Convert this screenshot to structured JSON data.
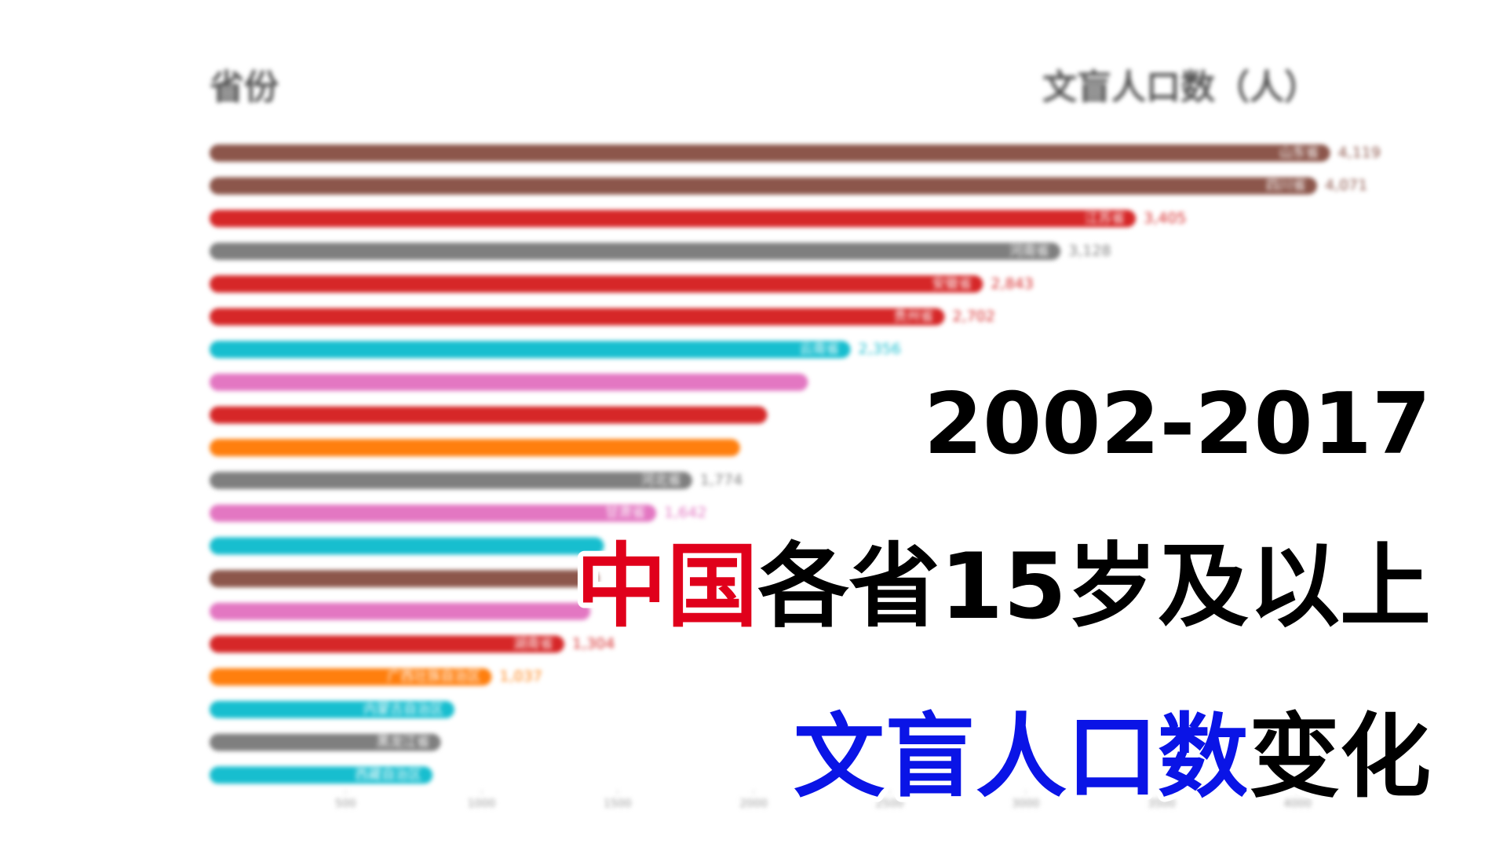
{
  "chart_data": {
    "type": "barh",
    "header_left": "省份",
    "header_right": "文盲人口数（人）",
    "categories": [
      "山东省",
      "四川省",
      "江苏省",
      "河南省",
      "安徽省",
      "贵州省",
      "云南省",
      null,
      null,
      null,
      "河北省",
      "甘肃省",
      null,
      null,
      null,
      "湖南省",
      "广西壮族自治区",
      "内蒙古自治区",
      "黑龙江省",
      "西藏自治区"
    ],
    "values": [
      4119,
      4071,
      3405,
      3128,
      2843,
      2702,
      2356,
      2200,
      2050,
      1950,
      1774,
      1642,
      1450,
      1430,
      1400,
      1304,
      1037,
      900,
      850,
      820
    ],
    "value_labels": [
      "4,119",
      "4,071",
      "3,405",
      "3,128",
      "2,843",
      "2,702",
      "2,356",
      null,
      null,
      null,
      "1,774",
      "1,642",
      null,
      null,
      null,
      "1,304",
      "1,037",
      null,
      null,
      null
    ],
    "colors": [
      "#8c564b",
      "#8c564b",
      "#d62728",
      "#7f7f7f",
      "#d62728",
      "#d62728",
      "#17becf",
      "#e377c2",
      "#d62728",
      "#ff7f0e",
      "#7f7f7f",
      "#e377c2",
      "#17becf",
      "#8c564b",
      "#e377c2",
      "#d62728",
      "#ff7f0e",
      "#17becf",
      "#7f7f7f",
      "#17becf"
    ],
    "xlim": [
      0,
      4250
    ],
    "xticks": [
      500,
      1000,
      1500,
      2000,
      2500,
      3000,
      3500,
      4000
    ],
    "title_lines": [
      [
        {
          "text": "2002-2017",
          "color": "#000000"
        }
      ],
      [
        {
          "text": "中国",
          "color": "#e0001b"
        },
        {
          "text": "各省15岁及以上",
          "color": "#000000"
        }
      ],
      [
        {
          "text": "文盲人口数",
          "color": "#0a14e6"
        },
        {
          "text": "变化",
          "color": "#000000"
        }
      ]
    ]
  }
}
